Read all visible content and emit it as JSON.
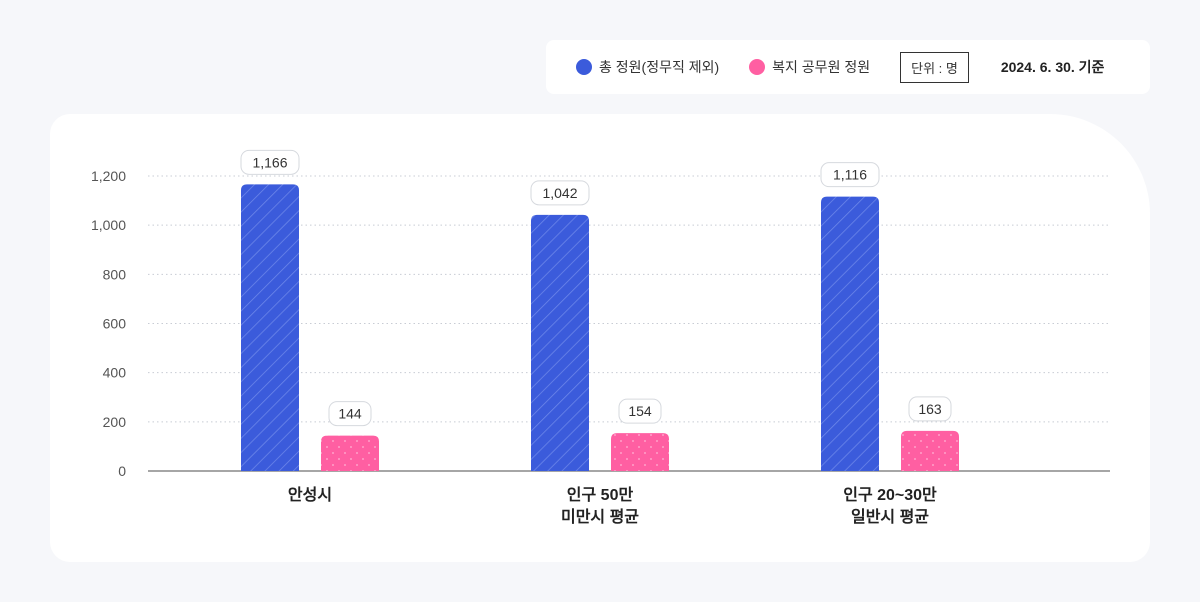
{
  "legend": {
    "items": [
      {
        "label": "총 정원(정무직 제외)",
        "color": "#3b5bdb"
      },
      {
        "label": "복지 공무원 정원",
        "color": "#ff5fa2"
      }
    ],
    "unit": "단위 : 명",
    "basis": "2024. 6. 30. 기준"
  },
  "chart_data": {
    "type": "bar",
    "categories": [
      [
        "안성시"
      ],
      [
        "인구 50만",
        "미만시 평균"
      ],
      [
        "인구 20~30만",
        "일반시 평균"
      ]
    ],
    "series": [
      {
        "name": "총 정원(정무직 제외)",
        "values": [
          1166,
          1042,
          1116
        ],
        "labels": [
          "1,166",
          "1,042",
          "1,116"
        ],
        "color": "#3b5bdb"
      },
      {
        "name": "복지 공무원 정원",
        "values": [
          144,
          154,
          163
        ],
        "labels": [
          "144",
          "154",
          "163"
        ],
        "color": "#ff5fa2"
      }
    ],
    "yticks": [
      0,
      200,
      400,
      600,
      800,
      1000,
      1200
    ],
    "ytick_labels": [
      "0",
      "200",
      "400",
      "600",
      "800",
      "1,000",
      "1,200"
    ],
    "ylim": [
      0,
      1200
    ],
    "grid": true
  }
}
